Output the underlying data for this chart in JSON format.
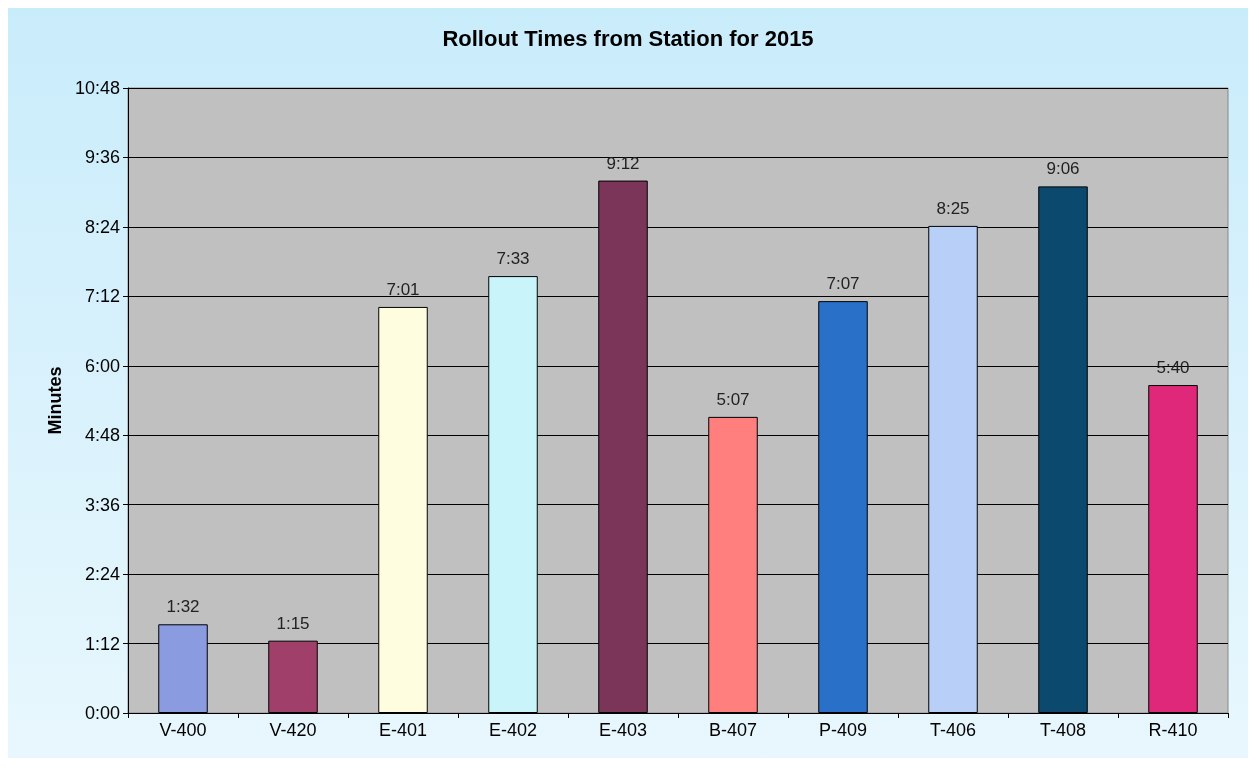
{
  "chart_data": {
    "type": "bar",
    "title": "Rollout Times from Station for 2015",
    "ylabel": "Minutes",
    "categories": [
      "V-400",
      "V-420",
      "E-401",
      "E-402",
      "E-403",
      "B-407",
      "P-409",
      "T-406",
      "T-408",
      "R-410"
    ],
    "values": [
      1.533,
      1.25,
      7.017,
      7.55,
      9.2,
      5.117,
      7.117,
      8.417,
      9.1,
      5.667
    ],
    "value_labels": [
      "1:32",
      "1:15",
      "7:01",
      "7:33",
      "9:12",
      "5:07",
      "7:07",
      "8:25",
      "9:06",
      "5:40"
    ],
    "colors": [
      "#8b9be0",
      "#a0406a",
      "#fffde0",
      "#c8f4fa",
      "#7a3558",
      "#ff7f7f",
      "#2870c8",
      "#b8d0f8",
      "#0b4a6e",
      "#e0287a"
    ],
    "ylim": [
      0,
      10.8
    ],
    "yticks": [
      {
        "value": 0,
        "label": "0:00"
      },
      {
        "value": 1.2,
        "label": "1:12"
      },
      {
        "value": 2.4,
        "label": "2:24"
      },
      {
        "value": 3.6,
        "label": "3:36"
      },
      {
        "value": 4.8,
        "label": "4:48"
      },
      {
        "value": 6,
        "label": "6:00"
      },
      {
        "value": 7.2,
        "label": "7:12"
      },
      {
        "value": 8.4,
        "label": "8:24"
      },
      {
        "value": 9.6,
        "label": "9:36"
      },
      {
        "value": 10.8,
        "label": "10:48"
      }
    ],
    "grid": "y"
  }
}
